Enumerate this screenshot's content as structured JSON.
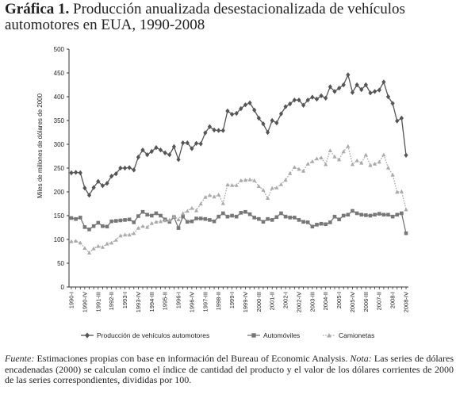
{
  "title": {
    "lead": "Gráfica 1.",
    "text": "Producción anualizada desestacionalizada de vehículos automotores en EUA, 1990-2008"
  },
  "caption": {
    "fuente_label": "Fuente:",
    "fuente_text": "Estimaciones propias con base en información del Bureau of Economic Analysis.",
    "nota_label": "Nota:",
    "nota_text": "Las series de dólares encadenadas (2000) se calculan como el índice de cantidad del producto y el valor de los dólares corrientes de 2000 de las series correspondientes, divididas por 100."
  },
  "chart_data": {
    "type": "line",
    "ylabel": "Miles de millones de dólares de 2000",
    "xlabel": "",
    "ylim": [
      0,
      500
    ],
    "yticks": [
      0,
      50,
      100,
      150,
      200,
      250,
      300,
      350,
      400,
      450,
      500
    ],
    "grid": false,
    "legend_position": "bottom",
    "x": [
      "1990-I",
      "1990-II",
      "1990-III",
      "1990-IV",
      "1991-I",
      "1991-II",
      "1991-III",
      "1991-IV",
      "1992-I",
      "1992-II",
      "1992-III",
      "1992-IV",
      "1993-I",
      "1993-II",
      "1993-III",
      "1993-IV",
      "1994-I",
      "1994-II",
      "1994-III",
      "1994-IV",
      "1995-I",
      "1995-II",
      "1995-III",
      "1995-IV",
      "1996-I",
      "1996-II",
      "1996-III",
      "1996-IV",
      "1997-I",
      "1997-II",
      "1997-III",
      "1997-IV",
      "1998-I",
      "1998-II",
      "1998-III",
      "1998-IV",
      "1999-I",
      "1999-II",
      "1999-III",
      "1999-IV",
      "2000-I",
      "2000-II",
      "2000-III",
      "2000-IV",
      "2001-I",
      "2001-II",
      "2001-III",
      "2001-IV",
      "2002-I",
      "2002-II",
      "2002-III",
      "2002-IV",
      "2003-I",
      "2003-II",
      "2003-III",
      "2003-IV",
      "2004-I",
      "2004-II",
      "2004-III",
      "2004-IV",
      "2005-I",
      "2005-II",
      "2005-III",
      "2005-IV",
      "2006-I",
      "2006-II",
      "2006-III",
      "2006-IV",
      "2007-I",
      "2007-II",
      "2007-III",
      "2007-IV",
      "2008-I",
      "2008-II",
      "2008-III",
      "2008-IV"
    ],
    "tick_labels": [
      "1990-I",
      "1990-IV",
      "1991-III",
      "1992-II",
      "1993-I",
      "1993-IV",
      "1994-III",
      "1995-II",
      "1996-I",
      "1996-IV",
      "1997-III",
      "1998-II",
      "1999-I",
      "1999-IV",
      "2000-III",
      "2001-II",
      "2002-I",
      "2002-IV",
      "2003-III",
      "2004-II",
      "2005-I",
      "2005-IV",
      "2006-III",
      "2007-II",
      "2008-I",
      "2008-IV"
    ],
    "series": [
      {
        "name": "Producción de vehículos automotores",
        "marker": "diamond",
        "style": "solid",
        "color": "#555555",
        "values": [
          240,
          241,
          240,
          208,
          193,
          209,
          222,
          213,
          218,
          233,
          238,
          250,
          250,
          251,
          246,
          273,
          288,
          278,
          285,
          293,
          288,
          282,
          278,
          295,
          268,
          303,
          303,
          291,
          302,
          301,
          324,
          337,
          330,
          329,
          329,
          370,
          363,
          365,
          375,
          383,
          387,
          372,
          355,
          343,
          325,
          350,
          345,
          364,
          379,
          385,
          393,
          393,
          382,
          393,
          399,
          395,
          402,
          397,
          421,
          411,
          418,
          425,
          446,
          409,
          425,
          415,
          425,
          408,
          411,
          414,
          431,
          400,
          386,
          349,
          355,
          277
        ]
      },
      {
        "name": "Automóviles",
        "marker": "square",
        "style": "solid",
        "color": "#777777",
        "values": [
          145,
          143,
          146,
          126,
          121,
          128,
          135,
          128,
          127,
          138,
          139,
          140,
          141,
          142,
          136,
          149,
          158,
          152,
          150,
          155,
          150,
          142,
          137,
          147,
          124,
          148,
          137,
          138,
          144,
          144,
          143,
          141,
          138,
          148,
          155,
          148,
          150,
          148,
          156,
          158,
          153,
          146,
          143,
          137,
          143,
          141,
          147,
          155,
          148,
          146,
          146,
          141,
          137,
          136,
          127,
          131,
          133,
          132,
          136,
          148,
          142,
          150,
          152,
          160,
          155,
          152,
          151,
          150,
          152,
          154,
          152,
          152,
          148,
          152,
          155,
          113
        ]
      },
      {
        "name": "Camionetas",
        "marker": "triangle",
        "style": "dotted",
        "color": "#aaaaaa",
        "values": [
          96,
          97,
          93,
          82,
          72,
          81,
          86,
          84,
          91,
          93,
          99,
          108,
          110,
          110,
          113,
          124,
          128,
          126,
          134,
          137,
          138,
          140,
          141,
          148,
          142,
          155,
          160,
          166,
          161,
          175,
          189,
          193,
          190,
          194,
          176,
          215,
          214,
          214,
          224,
          225,
          226,
          224,
          212,
          204,
          187,
          208,
          209,
          216,
          225,
          239,
          252,
          248,
          244,
          259,
          264,
          270,
          272,
          258,
          287,
          274,
          268,
          285,
          296,
          258,
          266,
          261,
          278,
          256,
          259,
          263,
          278,
          251,
          236,
          200,
          201,
          163
        ]
      }
    ]
  }
}
